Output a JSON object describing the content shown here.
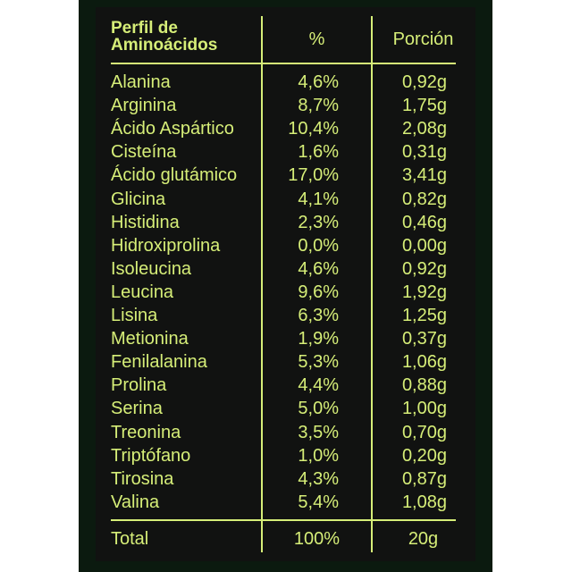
{
  "colors": {
    "text": "#d6ee78",
    "background": "#111211",
    "frame": "#0b1a0f"
  },
  "header": {
    "name": "Perfil de Aminoácidos",
    "percent": "%",
    "portion": "Porción"
  },
  "rows": [
    {
      "name": "Alanina",
      "percent": "4,6%",
      "portion": "0,92g"
    },
    {
      "name": "Arginina",
      "percent": "8,7%",
      "portion": "1,75g"
    },
    {
      "name": "Ácido Aspártico",
      "percent": "10,4%",
      "portion": "2,08g"
    },
    {
      "name": "Cisteína",
      "percent": "1,6%",
      "portion": "0,31g"
    },
    {
      "name": "Ácido glutámico",
      "percent": "17,0%",
      "portion": "3,41g"
    },
    {
      "name": "Glicina",
      "percent": "4,1%",
      "portion": "0,82g"
    },
    {
      "name": "Histidina",
      "percent": "2,3%",
      "portion": "0,46g"
    },
    {
      "name": "Hidroxiprolina",
      "percent": "0,0%",
      "portion": "0,00g"
    },
    {
      "name": "Isoleucina",
      "percent": "4,6%",
      "portion": "0,92g"
    },
    {
      "name": "Leucina",
      "percent": "9,6%",
      "portion": "1,92g"
    },
    {
      "name": "Lisina",
      "percent": "6,3%",
      "portion": "1,25g"
    },
    {
      "name": "Metionina",
      "percent": "1,9%",
      "portion": "0,37g"
    },
    {
      "name": "Fenilalanina",
      "percent": "5,3%",
      "portion": "1,06g"
    },
    {
      "name": "Prolina",
      "percent": "4,4%",
      "portion": "0,88g"
    },
    {
      "name": "Serina",
      "percent": "5,0%",
      "portion": "1,00g"
    },
    {
      "name": "Treonina",
      "percent": "3,5%",
      "portion": "0,70g"
    },
    {
      "name": "Triptófano",
      "percent": "1,0%",
      "portion": "0,20g"
    },
    {
      "name": "Tirosina",
      "percent": "4,3%",
      "portion": "0,87g"
    },
    {
      "name": "Valina",
      "percent": "5,4%",
      "portion": "1,08g"
    }
  ],
  "total": {
    "name": "Total",
    "percent": "100%",
    "portion": "20g"
  }
}
